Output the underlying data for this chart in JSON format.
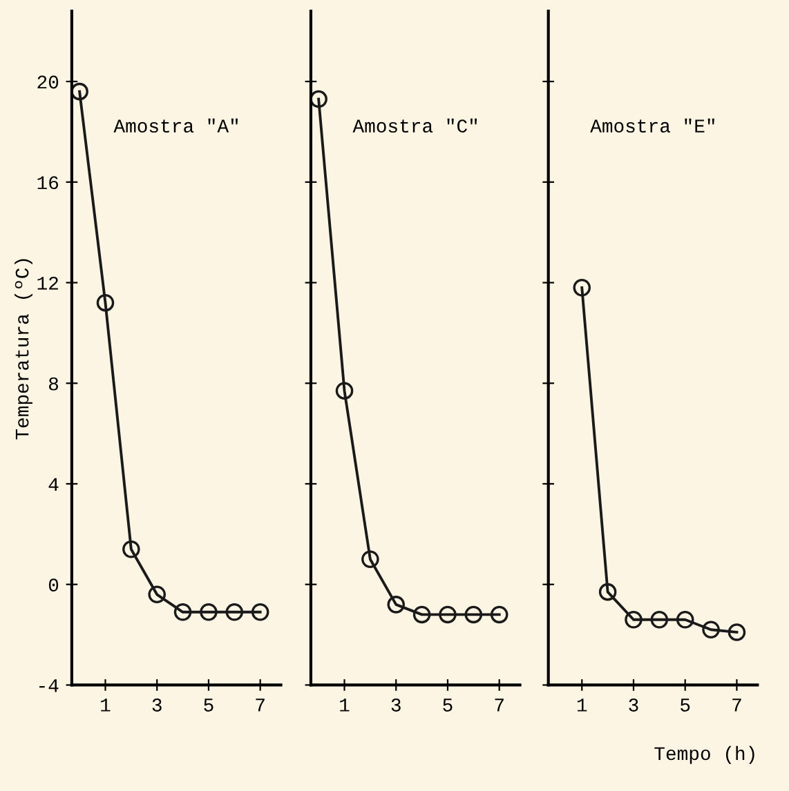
{
  "chart_data": [
    {
      "type": "line",
      "ylabel": "Temperatura (ºC)",
      "annotations": [
        "Amostra \"A\""
      ],
      "x": [
        0,
        1,
        2,
        3,
        4,
        5,
        6,
        7
      ],
      "series": [
        {
          "color": "#1a1a1a",
          "values": [
            19.6,
            11.2,
            1.4,
            -0.4,
            -1.1,
            -1.1,
            -1.1,
            -1.1
          ]
        }
      ],
      "xlim": [
        -0.3,
        7.8
      ],
      "ylim": [
        -4,
        22.8
      ],
      "xticks": [
        1,
        3,
        5,
        7
      ],
      "yticks": [
        -4,
        0,
        4,
        8,
        12,
        16,
        20
      ],
      "marker": "circle",
      "line_style": "solid",
      "grid": false,
      "legend": false
    },
    {
      "type": "line",
      "annotations": [
        "Amostra \"C\""
      ],
      "x": [
        0,
        1,
        2,
        3,
        4,
        5,
        6,
        7
      ],
      "series": [
        {
          "color": "#1a1a1a",
          "values": [
            19.3,
            7.7,
            1.0,
            -0.8,
            -1.2,
            -1.2,
            -1.2,
            -1.2
          ]
        }
      ],
      "xlim": [
        -0.3,
        7.8
      ],
      "ylim": [
        -4,
        22.8
      ],
      "xticks": [
        1,
        3,
        5,
        7
      ],
      "yticks": [
        {
          "value": -4,
          "label": null
        },
        {
          "value": 0,
          "label": null
        },
        {
          "value": 4,
          "label": null
        },
        {
          "value": 8,
          "label": null
        },
        {
          "value": 12,
          "label": null
        },
        {
          "value": 16,
          "label": null
        },
        {
          "value": 20,
          "label": null
        }
      ],
      "tick_labels": "x",
      "marker": "circle",
      "line_style": "solid",
      "grid": false,
      "legend": false
    },
    {
      "type": "line",
      "xlabel": "Tempo (h)",
      "annotations": [
        "Amostra \"E\""
      ],
      "x": [
        1,
        2,
        3,
        4,
        5,
        6,
        7
      ],
      "series": [
        {
          "color": "#1a1a1a",
          "values": [
            11.8,
            -0.3,
            -1.4,
            -1.4,
            -1.4,
            -1.8,
            -1.9
          ]
        }
      ],
      "xlim": [
        -0.3,
        7.8
      ],
      "ylim": [
        -4,
        22.8
      ],
      "xticks": [
        1,
        3,
        5,
        7
      ],
      "yticks": [
        {
          "value": -4,
          "label": null
        },
        {
          "value": 0,
          "label": null
        },
        {
          "value": 4,
          "label": null
        },
        {
          "value": 8,
          "label": null
        },
        {
          "value": 12,
          "label": null
        },
        {
          "value": 16,
          "label": null
        },
        {
          "value": 20,
          "label": null
        }
      ],
      "tick_labels": "x",
      "marker": "circle",
      "line_style": "solid",
      "grid": false,
      "legend": false
    }
  ]
}
